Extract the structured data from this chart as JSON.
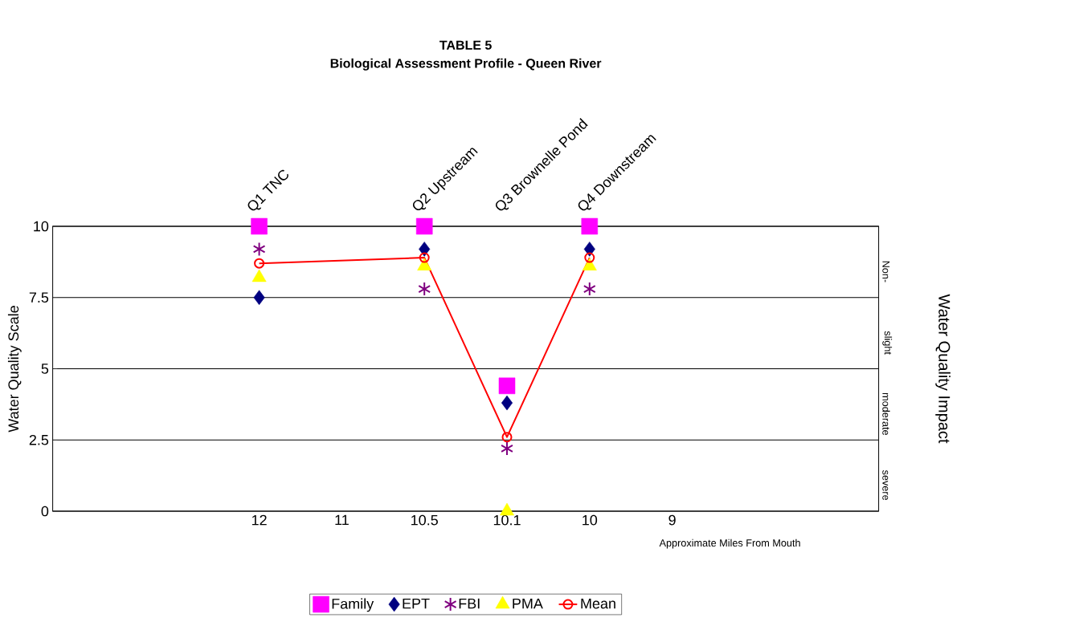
{
  "chart_data": {
    "type": "scatter",
    "title": "TABLE 5",
    "subtitle": "Biological Assessment Profile - Queen River",
    "xlabel": "Approximate Miles From Mouth",
    "ylabel": "Water Quality Scale",
    "categories": [
      null,
      null,
      "12",
      "11",
      "10.5",
      "10.1",
      "10",
      "9",
      null,
      null
    ],
    "series": [
      {
        "name": "Family",
        "marker": "square",
        "color": "#ff00ff",
        "values": [
          null,
          null,
          10,
          null,
          10,
          4.4,
          10,
          null,
          null,
          null
        ]
      },
      {
        "name": "EPT",
        "marker": "diamond",
        "color": "#000080",
        "values": [
          null,
          null,
          7.5,
          null,
          9.2,
          3.8,
          9.2,
          null,
          null,
          null
        ]
      },
      {
        "name": "FBI",
        "marker": "cross",
        "color": "#800080",
        "values": [
          null,
          null,
          9.2,
          null,
          7.8,
          2.2,
          7.8,
          null,
          null,
          null
        ]
      },
      {
        "name": "PMA",
        "marker": "triangle",
        "color": "#ffff00",
        "values": [
          null,
          null,
          8.2,
          null,
          8.6,
          0,
          8.6,
          null,
          null,
          null
        ]
      },
      {
        "name": "Mean",
        "type": "line",
        "marker": "circle",
        "line_style": "solid",
        "color": "#ff0000",
        "values": [
          null,
          null,
          8.7,
          null,
          8.9,
          2.6,
          8.9,
          null,
          null,
          null
        ]
      }
    ],
    "ylim": [
      0,
      10
    ],
    "yticks": [
      0,
      2.5,
      5,
      7.5,
      10
    ],
    "annotations": [
      "Q1 TNC",
      "Q2 Upstream",
      "Q3 Brownelle Pond",
      "Q4 Downstream",
      "Non-",
      "slight",
      "moderate",
      "severe",
      "Water Quality Impact"
    ],
    "grid": "y",
    "legend": "bottom"
  }
}
